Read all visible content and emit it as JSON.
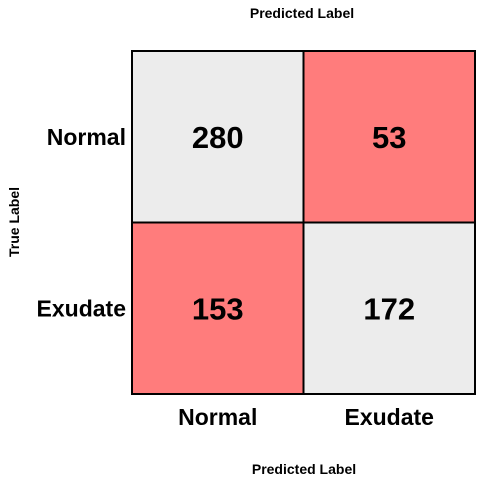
{
  "chart_data": {
    "type": "heatmap",
    "title_top": "Predicted Label",
    "xlabel": "Predicted Label",
    "ylabel": "True Label",
    "row_labels": [
      "Normal",
      "Exudate"
    ],
    "column_labels": [
      "Normal",
      "Exudate"
    ],
    "values": [
      [
        280,
        53
      ],
      [
        153,
        172
      ]
    ],
    "cell_colors": [
      [
        "#ececec",
        "#ff7c7c"
      ],
      [
        "#ff7c7c",
        "#ececec"
      ]
    ],
    "grid": true,
    "legend": "none"
  }
}
